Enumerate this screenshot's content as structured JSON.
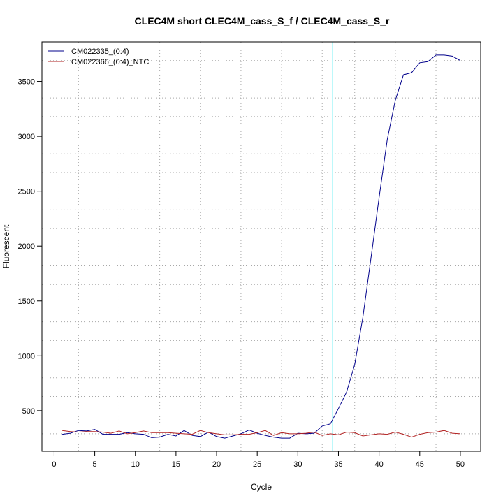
{
  "chart_data": {
    "type": "line",
    "title": "CLEC4M short CLEC4M_cass_S_f / CLEC4M_cass_S_r",
    "xlabel": "Cycle",
    "ylabel": "Fluorescent",
    "xlim": [
      -1.5,
      52.5
    ],
    "ylim": [
      130,
      3860
    ],
    "x_ticks": [
      0,
      5,
      10,
      15,
      20,
      25,
      30,
      35,
      40,
      45,
      50
    ],
    "y_ticks": [
      500,
      1000,
      1500,
      2000,
      2500,
      3000,
      3500
    ],
    "x_grid": [
      3,
      8,
      13,
      18,
      23,
      28,
      33,
      37,
      42,
      47
    ],
    "y_grid": [
      290,
      630,
      800,
      1140,
      1310,
      1650,
      1820,
      2160,
      2330,
      2670,
      2840,
      3180,
      3350,
      3690
    ],
    "threshold_x": 34.3,
    "threshold_color": "#00e5ee",
    "legend_position": "top-left",
    "x": [
      1,
      2,
      3,
      4,
      5,
      6,
      7,
      8,
      9,
      10,
      11,
      12,
      13,
      14,
      15,
      16,
      17,
      18,
      19,
      20,
      21,
      22,
      23,
      24,
      25,
      26,
      27,
      28,
      29,
      30,
      31,
      32,
      33,
      34,
      35,
      36,
      37,
      38,
      39,
      40,
      41,
      42,
      43,
      44,
      45,
      46,
      47,
      48,
      49,
      50
    ],
    "series": [
      {
        "name": "CM022335_(0:4)",
        "color": "#00008b",
        "values": [
          285,
          295,
          320,
          315,
          330,
          285,
          285,
          285,
          300,
          290,
          285,
          255,
          260,
          285,
          270,
          320,
          275,
          265,
          305,
          265,
          250,
          270,
          290,
          325,
          295,
          275,
          260,
          250,
          250,
          295,
          290,
          295,
          360,
          380,
          520,
          670,
          920,
          1350,
          1890,
          2440,
          2970,
          3330,
          3560,
          3580,
          3670,
          3680,
          3740,
          3740,
          3730,
          3690
        ]
      },
      {
        "name": "CM022366_(0:4)_NTC",
        "color": "#b22222",
        "values": [
          320,
          310,
          305,
          310,
          310,
          305,
          295,
          315,
          290,
          300,
          315,
          300,
          300,
          300,
          295,
          290,
          285,
          320,
          300,
          290,
          280,
          280,
          285,
          285,
          300,
          320,
          275,
          300,
          290,
          290,
          295,
          305,
          275,
          290,
          280,
          305,
          300,
          270,
          280,
          290,
          285,
          305,
          285,
          260,
          285,
          300,
          305,
          320,
          295,
          290
        ]
      }
    ]
  }
}
